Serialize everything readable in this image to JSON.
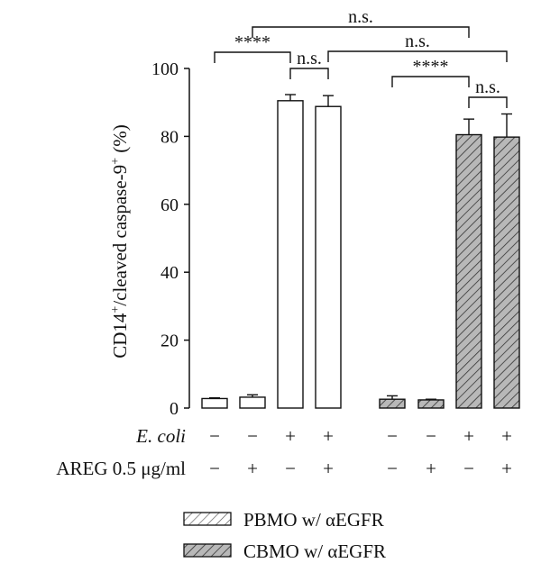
{
  "chart_data": {
    "type": "bar",
    "ylabel": "CD14",
    "ylabel_sup": "+",
    "ylabel_mid": "/cleaved caspase-9",
    "ylabel_sup2": "+",
    "ylabel_unit": " (%)",
    "ylim": [
      0,
      100
    ],
    "yticks": [
      "0",
      "20",
      "40",
      "60",
      "80",
      "100"
    ],
    "series": [
      {
        "name": "PBMO w/ αEGFR",
        "fill": "#ffffff",
        "values": [
          2.8,
          3.2,
          90.5,
          88.8
        ],
        "errors": [
          0.2,
          0.7,
          1.8,
          3.2
        ]
      },
      {
        "name": "CBMO w/ αEGFR",
        "fill": "#b8b8b8",
        "values": [
          2.6,
          2.4,
          80.5,
          79.8
        ],
        "errors": [
          1.0,
          0.2,
          4.6,
          6.8
        ]
      }
    ],
    "conditions": {
      "ecoli_label": "E. coli",
      "ecoli": [
        "−",
        "−",
        "+",
        "+",
        "−",
        "−",
        "+",
        "+"
      ],
      "areg_label": "AREG 0.5 μg/ml",
      "areg": [
        "−",
        "+",
        "−",
        "+",
        "−",
        "+",
        "−",
        "+"
      ]
    },
    "significance": [
      {
        "label": "****",
        "from": 0,
        "to": 2
      },
      {
        "label": "n.s.",
        "from": 2,
        "to": 3
      },
      {
        "label": "n.s.",
        "from": 1,
        "to": 6
      },
      {
        "label": "n.s.",
        "from": 3,
        "to": 7
      },
      {
        "label": "****",
        "from": 4,
        "to": 6
      },
      {
        "label": "n.s.",
        "from": 6,
        "to": 7
      }
    ],
    "legend": {
      "placement": "bottom",
      "items": [
        {
          "label": "PBMO w/ αEGFR",
          "fill": "#ffffff"
        },
        {
          "label": "CBMO w/ αEGFR",
          "fill": "#b8b8b8"
        }
      ]
    }
  }
}
